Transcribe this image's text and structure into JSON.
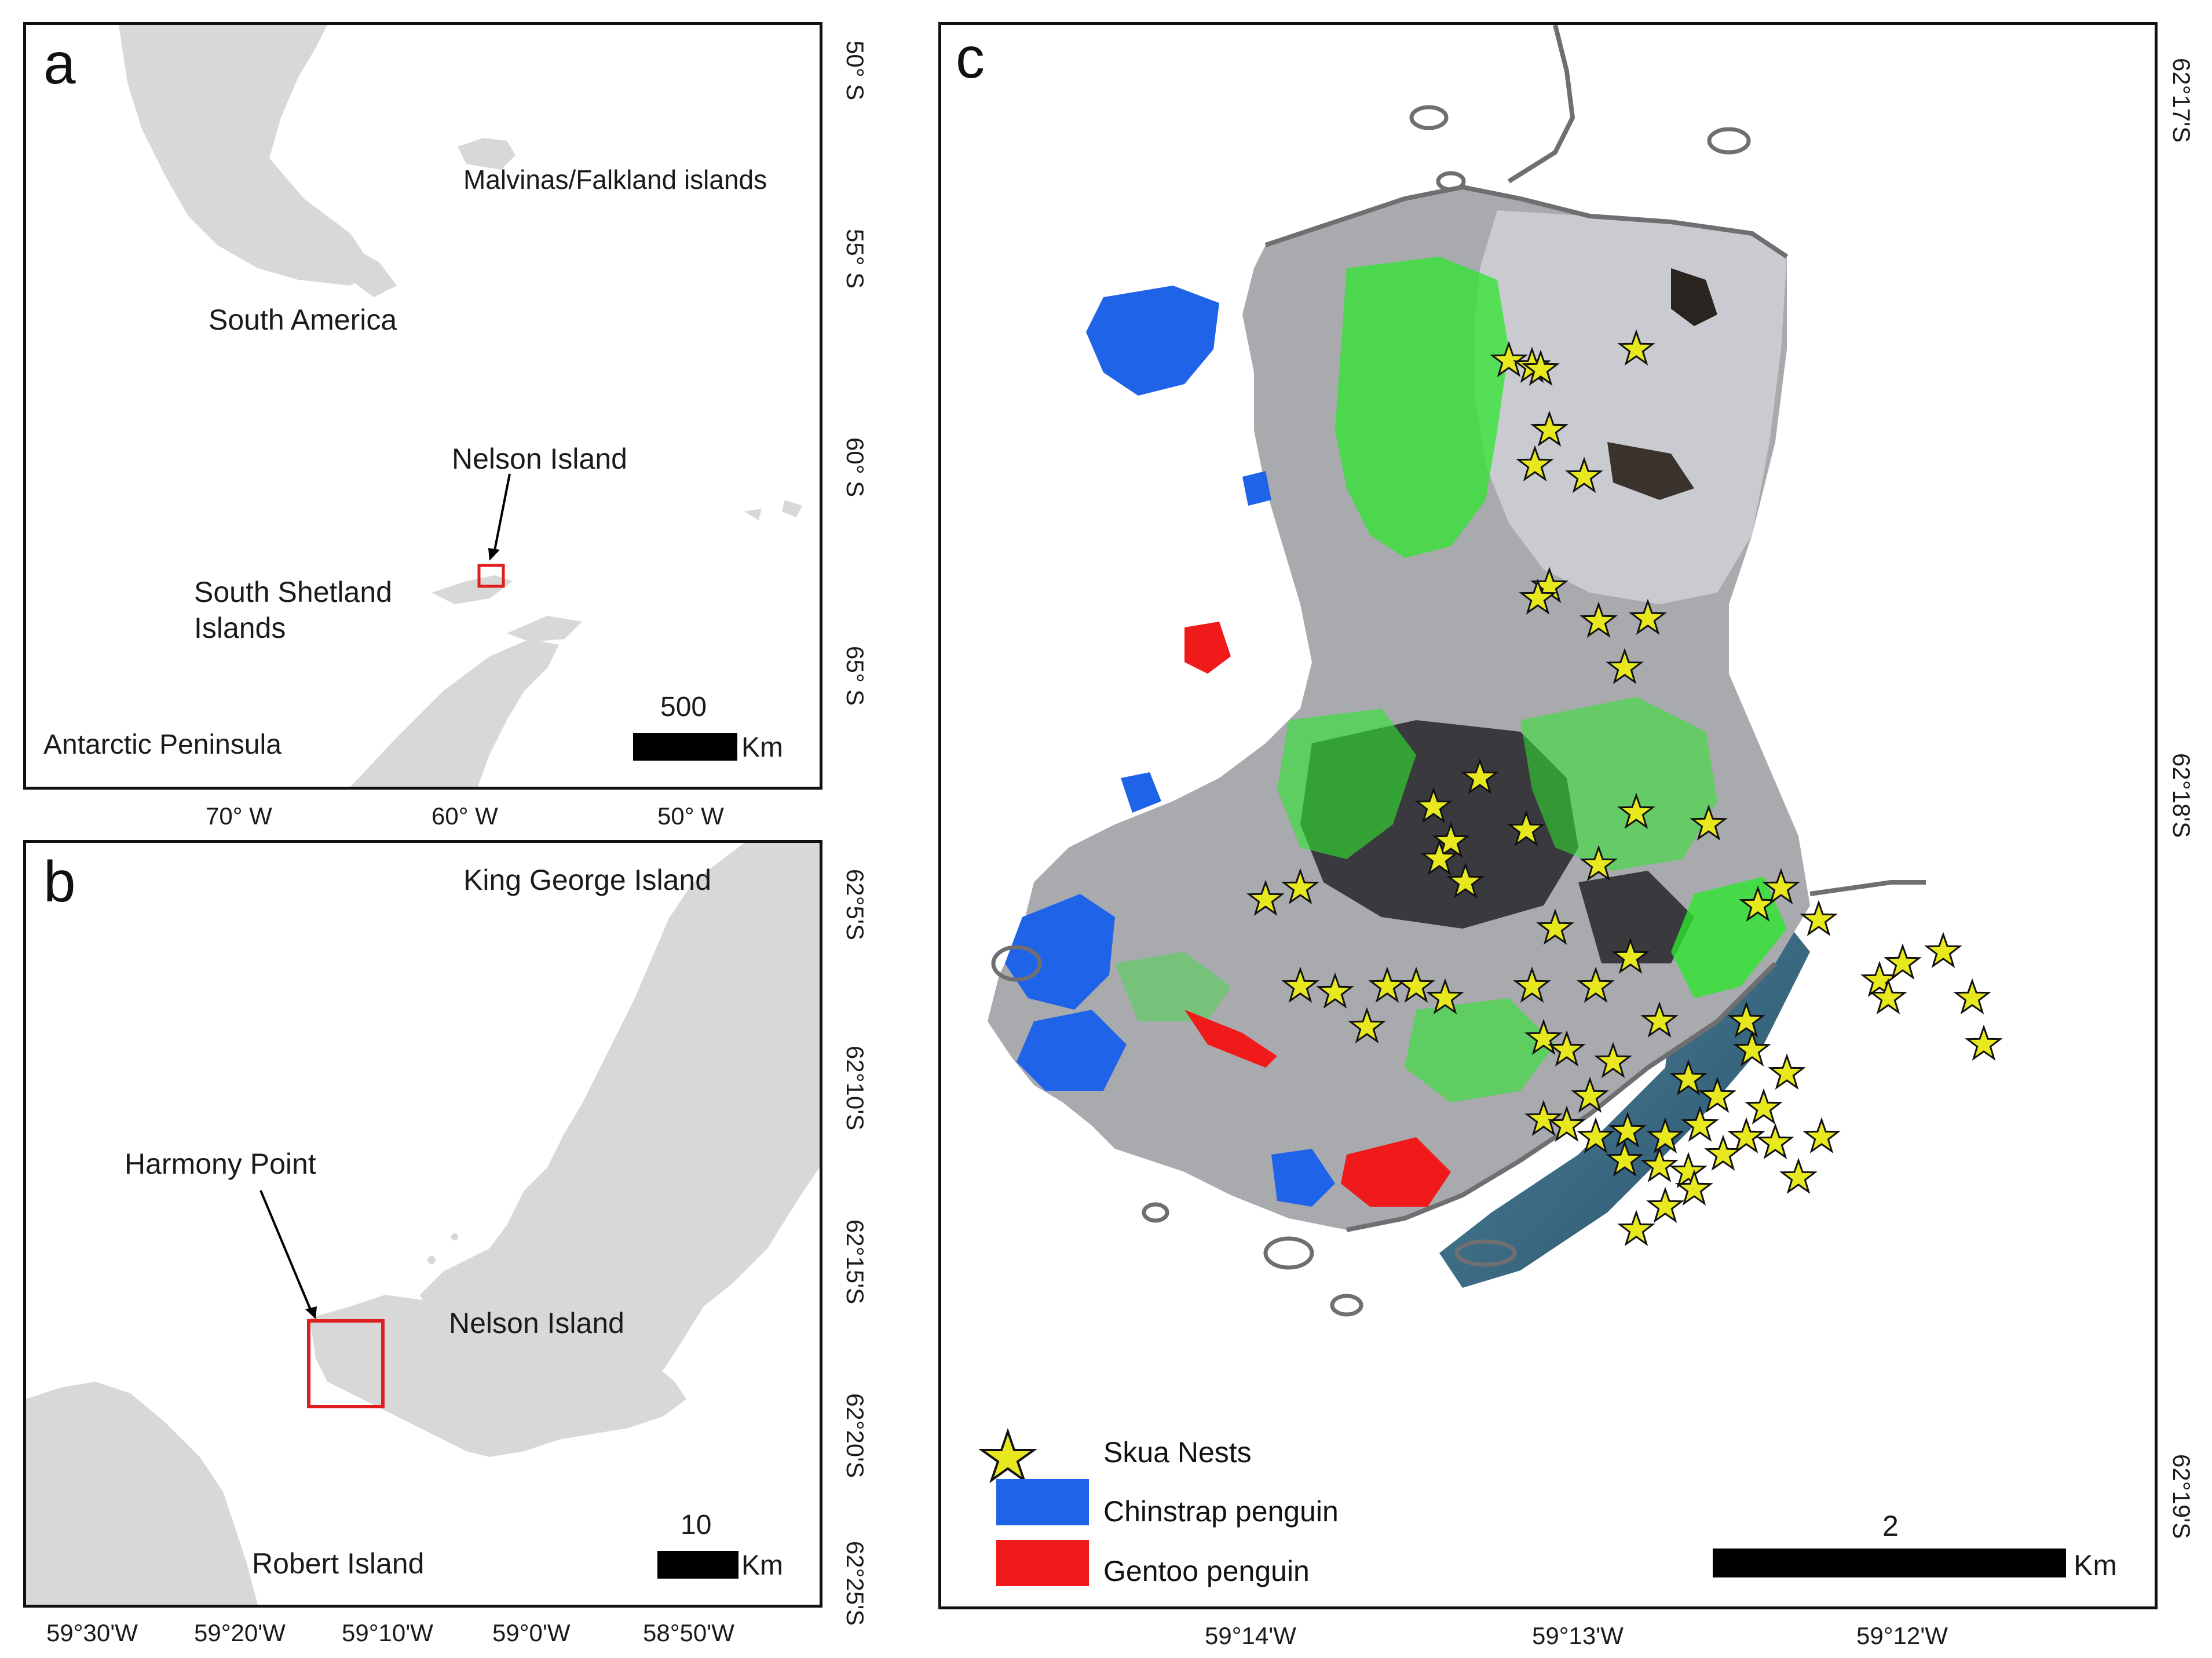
{
  "panel_a": {
    "letter": "a",
    "labels": {
      "falklands": "Malvinas/Falkland islands",
      "south_america": "South America",
      "nelson_island": "Nelson Island",
      "south_shetland_1": "South Shetland",
      "south_shetland_2": "Islands",
      "antarctic_peninsula": "Antarctic Peninsula"
    },
    "scale_value": "500",
    "scale_unit": "Km",
    "lat_ticks": [
      "50° S",
      "55° S",
      "60° S",
      "65° S"
    ],
    "lon_ticks": [
      "70° W",
      "60° W",
      "50° W"
    ]
  },
  "panel_b": {
    "letter": "b",
    "labels": {
      "king_george": "King George Island",
      "harmony_point": "Harmony Point",
      "nelson_island": "Nelson Island",
      "robert_island": "Robert Island"
    },
    "scale_value": "10",
    "scale_unit": "Km",
    "lat_ticks": [
      "62°5'S",
      "62°10'S",
      "62°15'S",
      "62°20'S",
      "62°25'S"
    ],
    "lon_ticks": [
      "59°30'W",
      "59°20'W",
      "59°10'W",
      "59°0'W",
      "58°50'W"
    ]
  },
  "panel_c": {
    "letter": "c",
    "lat_ticks": [
      "62°17'S",
      "62°18'S",
      "62°19'S"
    ],
    "lon_ticks": [
      "59°14'W",
      "59°13'W",
      "59°12'W"
    ],
    "scale_value": "2",
    "scale_unit": "Km",
    "legend": {
      "skua": "Skua Nests",
      "chinstrap": "Chinstrap penguin",
      "gentoo": "Gentoo penguin"
    },
    "colors": {
      "chinstrap": "#1f63e8",
      "gentoo": "#f01a1a",
      "vegetation": "#2ee62e",
      "skua_star": "#e8e81e"
    }
  }
}
